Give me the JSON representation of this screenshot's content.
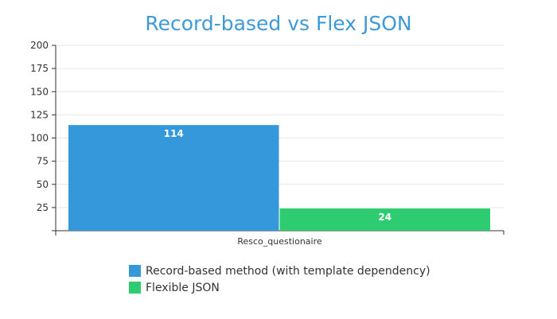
{
  "chart_data": {
    "type": "bar",
    "title": "Record-based vs Flex JSON",
    "categories": [
      "Resco_questionaire"
    ],
    "series": [
      {
        "name": "Record-based method (with template dependency)",
        "values": [
          114
        ],
        "color": "#3498db"
      },
      {
        "name": "Flexible JSON",
        "values": [
          24
        ],
        "color": "#2ecc71"
      }
    ],
    "ylim": [
      0,
      200
    ],
    "yticks": [
      "25",
      "50",
      "75",
      "100",
      "125",
      "150",
      "175",
      "200"
    ],
    "grid": true,
    "legend_position": "bottom",
    "data_labels": [
      "114",
      "24"
    ],
    "title_color": "#3d9ad6"
  }
}
